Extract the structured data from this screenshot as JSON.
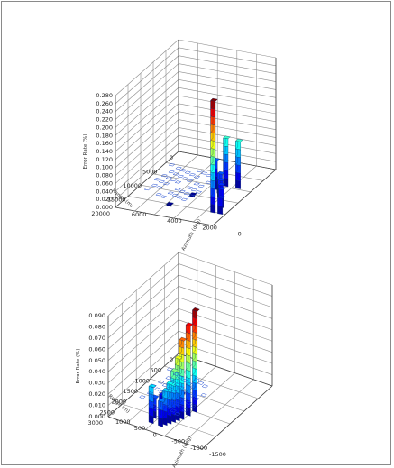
{
  "chart_data": [
    {
      "type": "bar3d",
      "title": "",
      "zlabel": "Error Rate (%)",
      "xlabel": "Range (m)",
      "ylabel": "Azimuth (deg)",
      "z_ticks": [
        "0.000",
        "0.020",
        "0.040",
        "0.060",
        "0.080",
        "0.100",
        "0.120",
        "0.140",
        "0.160",
        "0.180",
        "0.200",
        "0.220",
        "0.240",
        "0.260",
        "0.280"
      ],
      "z_range": [
        0,
        0.28
      ],
      "x_ticks": [
        "0",
        "5000",
        "10000",
        "15000",
        "20000"
      ],
      "y_ticks": [
        "6000",
        "4000",
        "2000",
        "0"
      ],
      "bars": [
        {
          "x": 15500,
          "y": 1800,
          "z": 0.28
        },
        {
          "x": 15500,
          "y": 1400,
          "z": 0.04
        },
        {
          "x": 10500,
          "y": 2300,
          "z": 0.058
        },
        {
          "x": 11500,
          "y": 2100,
          "z": 0.05
        },
        {
          "x": 12500,
          "y": 1900,
          "z": 0.047
        },
        {
          "x": 13500,
          "y": 1700,
          "z": 0.045
        },
        {
          "x": 7000,
          "y": 2600,
          "z": 0.12
        },
        {
          "x": 7000,
          "y": 1900,
          "z": 0.118
        },
        {
          "x": 7000,
          "y": 3200,
          "z": 0.06
        },
        {
          "x": 8500,
          "y": 2800,
          "z": 0.02
        },
        {
          "x": 9500,
          "y": 2500,
          "z": 0.018
        },
        {
          "x": 12000,
          "y": 3600,
          "z": 0.005
        },
        {
          "x": 16000,
          "y": 4200,
          "z": 0.004
        }
      ]
    },
    {
      "type": "bar3d",
      "title": "",
      "zlabel": "Error Rate (%)",
      "xlabel": "Range (m)",
      "ylabel": "Azimuth (deg)",
      "z_ticks": [
        "0.000",
        "0.010",
        "0.020",
        "0.030",
        "0.040",
        "0.050",
        "0.060",
        "0.070",
        "0.080",
        "0.090"
      ],
      "z_range": [
        0,
        0.09
      ],
      "x_ticks": [
        "0",
        "500",
        "1000",
        "1500",
        "2000",
        "2500",
        "3000"
      ],
      "y_ticks": [
        "1000",
        "500",
        "0",
        "-500",
        "-1000",
        "-1500"
      ],
      "bars": [
        {
          "x": 1700,
          "y": -500,
          "z": 0.09
        },
        {
          "x": 1900,
          "y": -450,
          "z": 0.08
        },
        {
          "x": 2100,
          "y": -400,
          "z": 0.07
        },
        {
          "x": 2200,
          "y": -350,
          "z": 0.055
        },
        {
          "x": 2300,
          "y": -300,
          "z": 0.045
        },
        {
          "x": 2400,
          "y": -250,
          "z": 0.035
        },
        {
          "x": 2500,
          "y": -200,
          "z": 0.03
        },
        {
          "x": 2600,
          "y": -150,
          "z": 0.022
        },
        {
          "x": 2600,
          "y": 100,
          "z": 0.032
        },
        {
          "x": 2400,
          "y": 150,
          "z": 0.018
        },
        {
          "x": 2000,
          "y": 200,
          "z": 0.012
        },
        {
          "x": 1500,
          "y": 0,
          "z": 0.006
        }
      ]
    }
  ]
}
